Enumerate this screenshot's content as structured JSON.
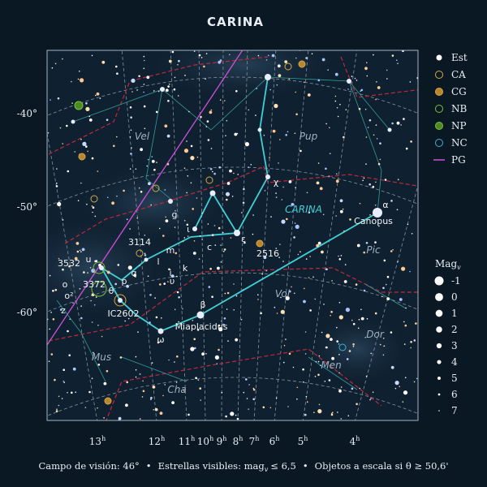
{
  "title": "CARINA",
  "declination_labels": [
    "-40°",
    "-50°",
    "-60°"
  ],
  "ra_labels": [
    {
      "hour": "13",
      "unit": "h"
    },
    {
      "hour": "12",
      "unit": "h"
    },
    {
      "hour": "11",
      "unit": "h"
    },
    {
      "hour": "10",
      "unit": "h"
    },
    {
      "hour": "9",
      "unit": "h"
    },
    {
      "hour": "8",
      "unit": "h"
    },
    {
      "hour": "7",
      "unit": "h"
    },
    {
      "hour": "6",
      "unit": "h"
    },
    {
      "hour": "5",
      "unit": "h"
    },
    {
      "hour": "4",
      "unit": "h"
    }
  ],
  "main_constellation": "CARINA",
  "constellations": [
    "Vel",
    "Pup",
    "Pic",
    "Vol",
    "Dor",
    "Men",
    "Mus",
    "Cha"
  ],
  "star_labels": [
    "Canopus",
    "Miaplacidus",
    "α",
    "β",
    "ε",
    "χ",
    "ω",
    "θ",
    "g",
    "ι",
    "m",
    "l",
    "i",
    "k",
    "c",
    "υ",
    "p",
    "q",
    "u",
    "o",
    "ο²",
    "z"
  ],
  "object_labels": [
    "3114",
    "3532",
    "3372",
    "IC2602",
    "2516"
  ],
  "legend": {
    "objects": [
      "Est",
      "CA",
      "CG",
      "NB",
      "NP",
      "NC",
      "PG"
    ],
    "magnitude_title": {
      "text": "Mag",
      "sub": "v"
    },
    "magnitudes": [
      -1,
      0,
      1,
      2,
      3,
      4,
      5,
      6,
      7
    ]
  },
  "footer": {
    "field": "Campo de visión: 46°",
    "separator": "•",
    "stars": "Estrellas visibles: mag",
    "stars_sub": "v",
    "stars_limit": "≤ 6,5",
    "objects": "Objetos a escala si θ ≥ 50,6'"
  }
}
